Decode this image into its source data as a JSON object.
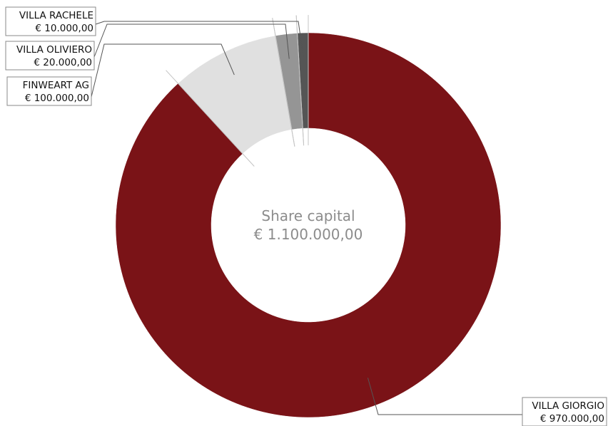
{
  "chart_data": {
    "type": "pie",
    "variant": "donut",
    "center": {
      "title": "Share capital",
      "total": "€ 1.100.000,00"
    },
    "currency": "EUR",
    "slices": [
      {
        "name": "VILLA GIORGIO",
        "value": 970000,
        "value_label": "€ 970.000,00",
        "color": "#7a1317"
      },
      {
        "name": "FINWEART AG",
        "value": 100000,
        "value_label": "€ 100.000,00",
        "color": "#e0e0e0"
      },
      {
        "name": "VILLA OLIVIERO",
        "value": 20000,
        "value_label": "€ 20.000,00",
        "color": "#959595"
      },
      {
        "name": "VILLA RACHELE",
        "value": 10000,
        "value_label": "€ 10.000,00",
        "color": "#555555"
      }
    ]
  }
}
